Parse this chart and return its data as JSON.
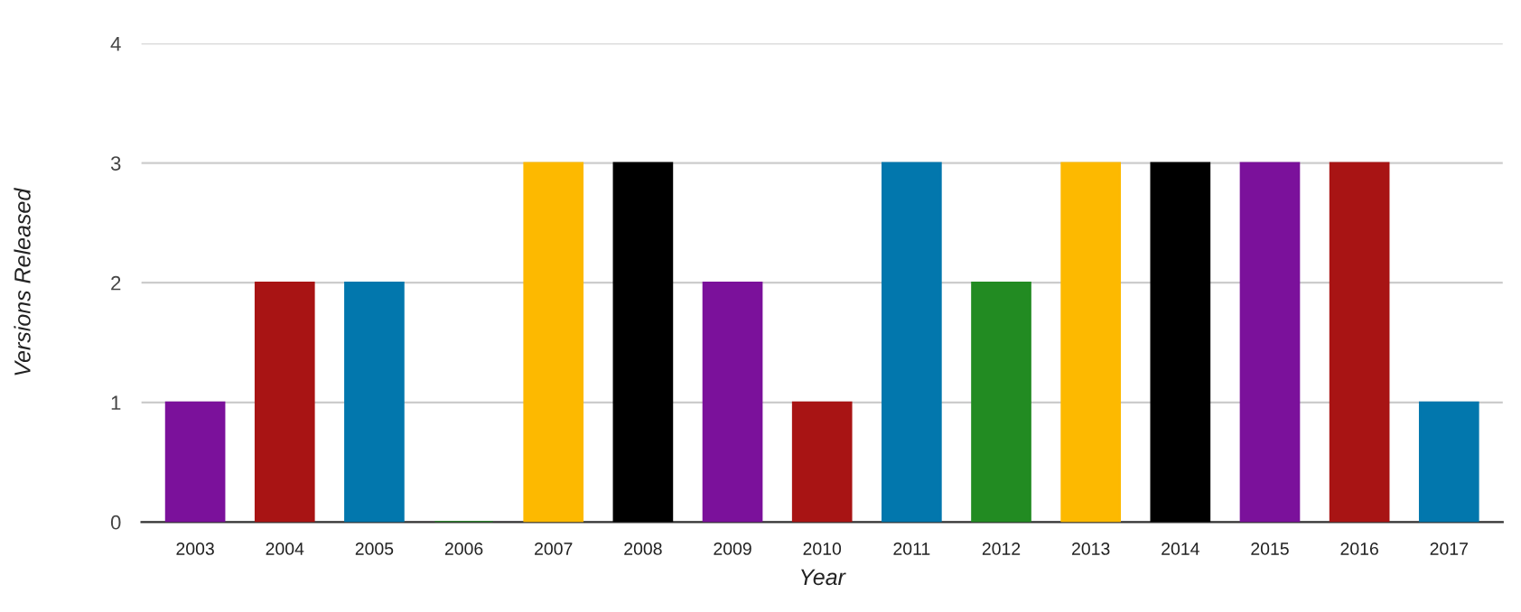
{
  "chart_data": {
    "type": "bar",
    "xlabel": "Year",
    "ylabel": "Versions Released",
    "categories": [
      "2003",
      "2004",
      "2005",
      "2006",
      "2007",
      "2008",
      "2009",
      "2010",
      "2011",
      "2012",
      "2013",
      "2014",
      "2015",
      "2016",
      "2017"
    ],
    "values": [
      1,
      2,
      2,
      0,
      3,
      3,
      2,
      1,
      3,
      2,
      3,
      3,
      3,
      3,
      1
    ],
    "colors": [
      "#7b119b",
      "#a81414",
      "#0277ad",
      "#228b22",
      "#fdb900",
      "#000000",
      "#7b119b",
      "#a81414",
      "#0277ad",
      "#228b22",
      "#fdb900",
      "#000000",
      "#7b119b",
      "#a81414",
      "#0277ad"
    ],
    "ylim": [
      0,
      4
    ],
    "yticks": [
      0,
      1,
      2,
      3,
      4
    ],
    "grid": "y",
    "legend": false
  }
}
